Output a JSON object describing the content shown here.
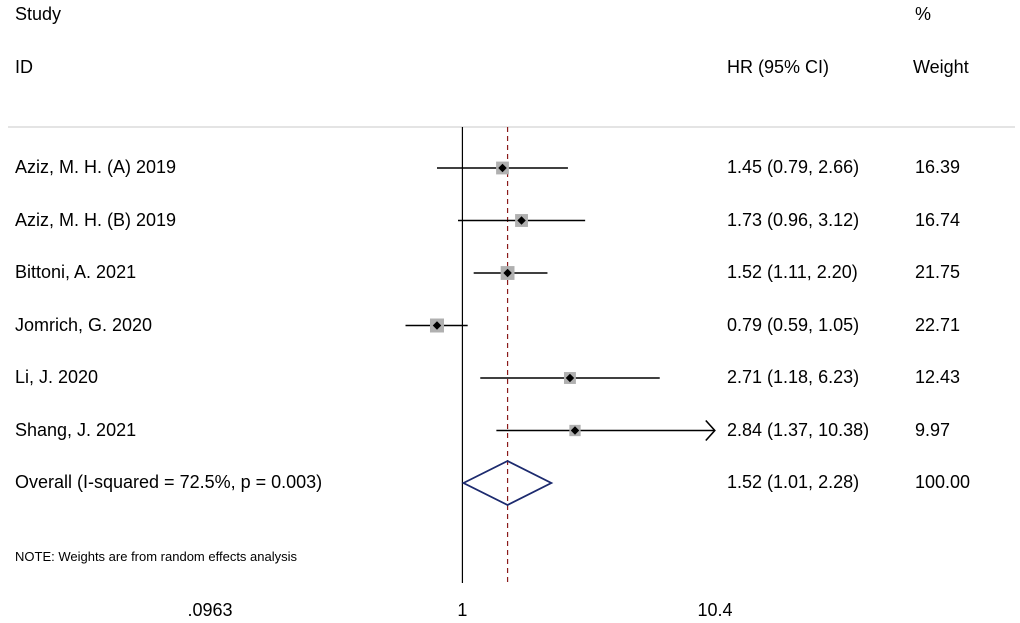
{
  "headers": {
    "study": "Study",
    "id": "ID",
    "hr": "HR (95% CI)",
    "percent": "%",
    "weight": "Weight"
  },
  "note": "NOTE: Weights are from random effects analysis",
  "colors": {
    "ci_line": "#000000",
    "weight_box": "#b0b0b0",
    "diamond": "#1c2a6e",
    "overall_line": "#8b1a1a",
    "null_line": "#000000"
  },
  "chart_data": {
    "type": "forest",
    "x_scale": "log",
    "x_ticks": [
      0.0963,
      1,
      10.4
    ],
    "x_tick_labels": [
      ".0963",
      "1",
      "10.4"
    ],
    "null_value": 1,
    "overall_value": 1.52,
    "studies": [
      {
        "label": "Aziz, M. H. (A) 2019",
        "hr": 1.45,
        "lo": 0.79,
        "hi": 2.66,
        "ci_text": "1.45 (0.79, 2.66)",
        "weight": 16.39,
        "weight_text": "16.39"
      },
      {
        "label": "Aziz, M. H. (B) 2019",
        "hr": 1.73,
        "lo": 0.96,
        "hi": 3.12,
        "ci_text": "1.73 (0.96, 3.12)",
        "weight": 16.74,
        "weight_text": "16.74"
      },
      {
        "label": "Bittoni, A. 2021",
        "hr": 1.52,
        "lo": 1.11,
        "hi": 2.2,
        "ci_text": "1.52 (1.11, 2.20)",
        "weight": 21.75,
        "weight_text": "21.75"
      },
      {
        "label": "Jomrich, G. 2020",
        "hr": 0.79,
        "lo": 0.59,
        "hi": 1.05,
        "ci_text": "0.79 (0.59, 1.05)",
        "weight": 22.71,
        "weight_text": "22.71"
      },
      {
        "label": "Li, J. 2020",
        "hr": 2.71,
        "lo": 1.18,
        "hi": 6.23,
        "ci_text": "2.71 (1.18, 6.23)",
        "weight": 12.43,
        "weight_text": "12.43"
      },
      {
        "label": "Shang, J. 2021",
        "hr": 2.84,
        "lo": 1.37,
        "hi": 10.38,
        "ci_text": "2.84 (1.37, 10.38)",
        "weight": 9.97,
        "weight_text": "9.97",
        "arrow_right": true
      }
    ],
    "overall": {
      "label": "Overall  (I-squared = 72.5%, p = 0.003)",
      "hr": 1.52,
      "lo": 1.01,
      "hi": 2.28,
      "ci_text": "1.52 (1.01, 2.28)",
      "weight": 100.0,
      "weight_text": "100.00"
    }
  }
}
